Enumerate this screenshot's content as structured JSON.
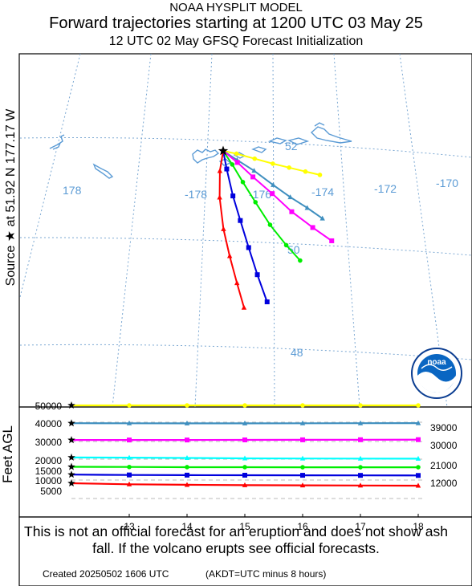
{
  "header": {
    "line1": "NOAA HYSPLIT MODEL",
    "line2": "Forward trajectories starting at 1200 UTC 03 May 25",
    "line3": "12 UTC 02 May     GFSQ  Forecast Initialization"
  },
  "source_label": "Source ★  at    51.92 N   177.17 W",
  "altitude_axis_label": "Feet AGL",
  "footer": {
    "note": "This is not an official forecast for an eruption and does not show ash fall. If the volcano erupts see official forecasts.",
    "created": "Created 20250502 1606 UTC",
    "timezone": "(AKDT=UTC minus 8 hours)"
  },
  "logo": {
    "text": "noaa"
  },
  "colors": {
    "yellow": "#ffff00",
    "cyan": "#00ffff",
    "magenta": "#ff00ff",
    "green": "#00ee00",
    "blue": "#0000dd",
    "red": "#ff0000",
    "steelblue": "#3f8fbf",
    "grid": "#7aa7d2",
    "map_label": "#5b9bd5"
  },
  "map": {
    "lon_labels": [
      "178",
      "-178",
      "-176",
      "-174",
      "-172",
      "-170"
    ],
    "lat_labels": [
      "52",
      "50",
      "48"
    ]
  },
  "chart_data": [
    {
      "type": "line",
      "name": "trajectory-map",
      "source": {
        "lat": 51.92,
        "lon": -177.17
      },
      "series": [
        {
          "color": "yellow",
          "marker": "circle",
          "points": [
            [
              51.92,
              -177.17
            ],
            [
              51.88,
              -176.8
            ],
            [
              51.8,
              -176.3
            ],
            [
              51.72,
              -175.8
            ],
            [
              51.66,
              -175.35
            ],
            [
              51.6,
              -174.9
            ],
            [
              51.55,
              -174.5
            ]
          ]
        },
        {
          "color": "steelblue",
          "marker": "triangle",
          "points": [
            [
              51.92,
              -177.17
            ],
            [
              51.75,
              -176.8
            ],
            [
              51.55,
              -176.35
            ],
            [
              51.28,
              -175.85
            ],
            [
              51.05,
              -175.4
            ],
            [
              50.85,
              -174.95
            ],
            [
              50.65,
              -174.55
            ]
          ]
        },
        {
          "color": "magenta",
          "marker": "square",
          "points": [
            [
              51.92,
              -177.17
            ],
            [
              51.7,
              -176.8
            ],
            [
              51.42,
              -176.4
            ],
            [
              51.1,
              -175.9
            ],
            [
              50.75,
              -175.4
            ],
            [
              50.45,
              -174.85
            ],
            [
              50.2,
              -174.35
            ]
          ]
        },
        {
          "color": "green",
          "marker": "circle",
          "points": [
            [
              51.92,
              -177.17
            ],
            [
              51.65,
              -176.95
            ],
            [
              51.3,
              -176.7
            ],
            [
              50.9,
              -176.4
            ],
            [
              50.45,
              -176.05
            ],
            [
              50.05,
              -175.65
            ],
            [
              49.75,
              -175.3
            ]
          ]
        },
        {
          "color": "blue",
          "marker": "square",
          "points": [
            [
              51.92,
              -177.17
            ],
            [
              51.55,
              -177.12
            ],
            [
              51.0,
              -177.02
            ],
            [
              50.5,
              -176.88
            ],
            [
              49.95,
              -176.72
            ],
            [
              49.4,
              -176.55
            ],
            [
              48.85,
              -176.35
            ]
          ]
        },
        {
          "color": "red",
          "marker": "triangle",
          "points": [
            [
              51.92,
              -177.17
            ],
            [
              51.5,
              -177.32
            ],
            [
              50.95,
              -177.4
            ],
            [
              50.3,
              -177.38
            ],
            [
              49.75,
              -177.28
            ],
            [
              49.2,
              -177.15
            ],
            [
              48.7,
              -177.02
            ]
          ]
        }
      ]
    },
    {
      "type": "line",
      "name": "altitude-profile",
      "x_ticks": [
        "13",
        "14",
        "15",
        "16",
        "17",
        "18"
      ],
      "y_ticks_left": [
        "50000",
        "40000",
        "30000",
        "20000",
        "15000",
        "10000",
        "5000"
      ],
      "y_ticks_right": [
        "39000",
        "30000",
        "21000",
        "12000"
      ],
      "series": [
        {
          "color": "yellow",
          "marker": "circle",
          "values": [
            50000,
            50000,
            50000,
            50000,
            50000,
            50000,
            50000
          ]
        },
        {
          "color": "steelblue",
          "marker": "triangle",
          "values": [
            39700,
            39650,
            39600,
            39600,
            39650,
            39700,
            39750
          ]
        },
        {
          "color": "magenta",
          "marker": "square",
          "values": [
            30000,
            30000,
            30000,
            30050,
            30100,
            30150,
            30200
          ]
        },
        {
          "color": "cyan",
          "marker": "triangle",
          "values": [
            19900,
            19800,
            19600,
            19400,
            19300,
            19250,
            19200
          ]
        },
        {
          "color": "green",
          "marker": "circle",
          "values": [
            14500,
            14400,
            14300,
            14300,
            14250,
            14250,
            14250
          ]
        },
        {
          "color": "blue",
          "marker": "square",
          "values": [
            10000,
            9800,
            9700,
            9650,
            9600,
            9550,
            9500
          ]
        },
        {
          "color": "red",
          "marker": "triangle",
          "values": [
            5000,
            4400,
            4100,
            3900,
            3800,
            3700,
            3600
          ]
        }
      ]
    }
  ]
}
